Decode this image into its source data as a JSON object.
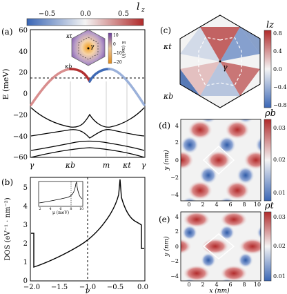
{
  "top_colorbar": {
    "label": "l",
    "label_sub": "z",
    "ticks": [
      "−0.5",
      "0.0",
      "0.5"
    ],
    "colors": [
      "#3a66b5",
      "#ffffff",
      "#b02a2a"
    ]
  },
  "panel_a": {
    "tag": "(a)",
    "ylabel": "E (meV)",
    "yticks": [
      "60",
      "40",
      "20",
      "0",
      "−20",
      "−40",
      "−60"
    ],
    "xticks": [
      "γ",
      "κb",
      "m",
      "κt",
      "γ"
    ],
    "inset": {
      "labels": [
        "κt",
        "γ",
        "κb"
      ],
      "cbar_label": "E (meV)",
      "cbar_ticks": [
        "10",
        "0",
        "−10",
        "−20"
      ]
    }
  },
  "panel_b": {
    "tag": "(b)",
    "ylabel": "DOS (eV⁻¹ · nm⁻²)",
    "xlabel": "ν",
    "yticks": [
      "0",
      "1",
      "2",
      "3",
      "4",
      "5"
    ],
    "xticks": [
      "−2.0",
      "−1.5",
      "−1.0",
      "−0.5",
      "0.0"
    ],
    "inset": {
      "xlabel": "μ (meV)",
      "xticks": [
        "2",
        "4",
        "6",
        "8",
        "10"
      ]
    }
  },
  "panel_c": {
    "tag": "(c)",
    "labels": [
      "κt",
      "κb",
      "γ"
    ],
    "cbar_label": "lz",
    "cbar_ticks": [
      "0.8",
      "0.4",
      "0.0",
      "−0.4",
      "−0.8"
    ]
  },
  "panel_d": {
    "tag": "(d)",
    "ylabel": "y (nm)",
    "yticks": [
      "4",
      "2",
      "0",
      "−2",
      "−4"
    ],
    "xticks": [
      "0",
      "2",
      "4",
      "6",
      "8",
      "10"
    ],
    "cbar_label": "ρb",
    "cbar_ticks": [
      "0.03",
      "0.02",
      "0.01"
    ]
  },
  "panel_e": {
    "tag": "(e)",
    "ylabel": "y (nm)",
    "xlabel": "x (nm)",
    "yticks": [
      "4",
      "2",
      "0",
      "−2",
      "−4"
    ],
    "xticks": [
      "0",
      "2",
      "4",
      "6",
      "8",
      "10"
    ],
    "cbar_label": "ρt",
    "cbar_ticks": [
      "0.03",
      "0.02",
      "0.01"
    ]
  }
}
